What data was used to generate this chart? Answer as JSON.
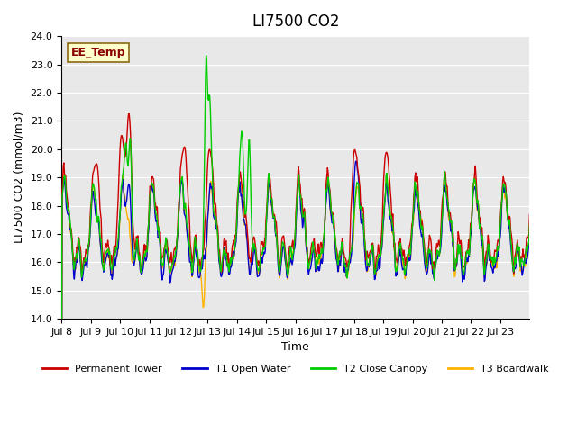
{
  "title": "LI7500 CO2",
  "ylabel": "LI7500 CO2 (mmol/m3)",
  "xlabel": "Time",
  "annotation": "EE_Temp",
  "ylim": [
    14.0,
    24.0
  ],
  "yticks": [
    14.0,
    15.0,
    16.0,
    17.0,
    18.0,
    19.0,
    20.0,
    21.0,
    22.0,
    23.0,
    24.0
  ],
  "xtick_labels": [
    "Jul 8",
    "Jul 9",
    "Jul 10",
    "Jul 11",
    "Jul 12",
    "Jul 13",
    "Jul 14",
    "Jul 15",
    "Jul 16",
    "Jul 17",
    "Jul 18",
    "Jul 19",
    "Jul 20",
    "Jul 21",
    "Jul 22",
    "Jul 23"
  ],
  "colors": {
    "red": "#CC0000",
    "blue": "#0000CC",
    "green": "#00CC00",
    "orange": "#FFB300",
    "background": "#E8E8E8"
  },
  "legend_labels": [
    "Permanent Tower",
    "T1 Open Water",
    "T2 Close Canopy",
    "T3 Boardwalk"
  ],
  "num_days": 16,
  "seed": 42
}
